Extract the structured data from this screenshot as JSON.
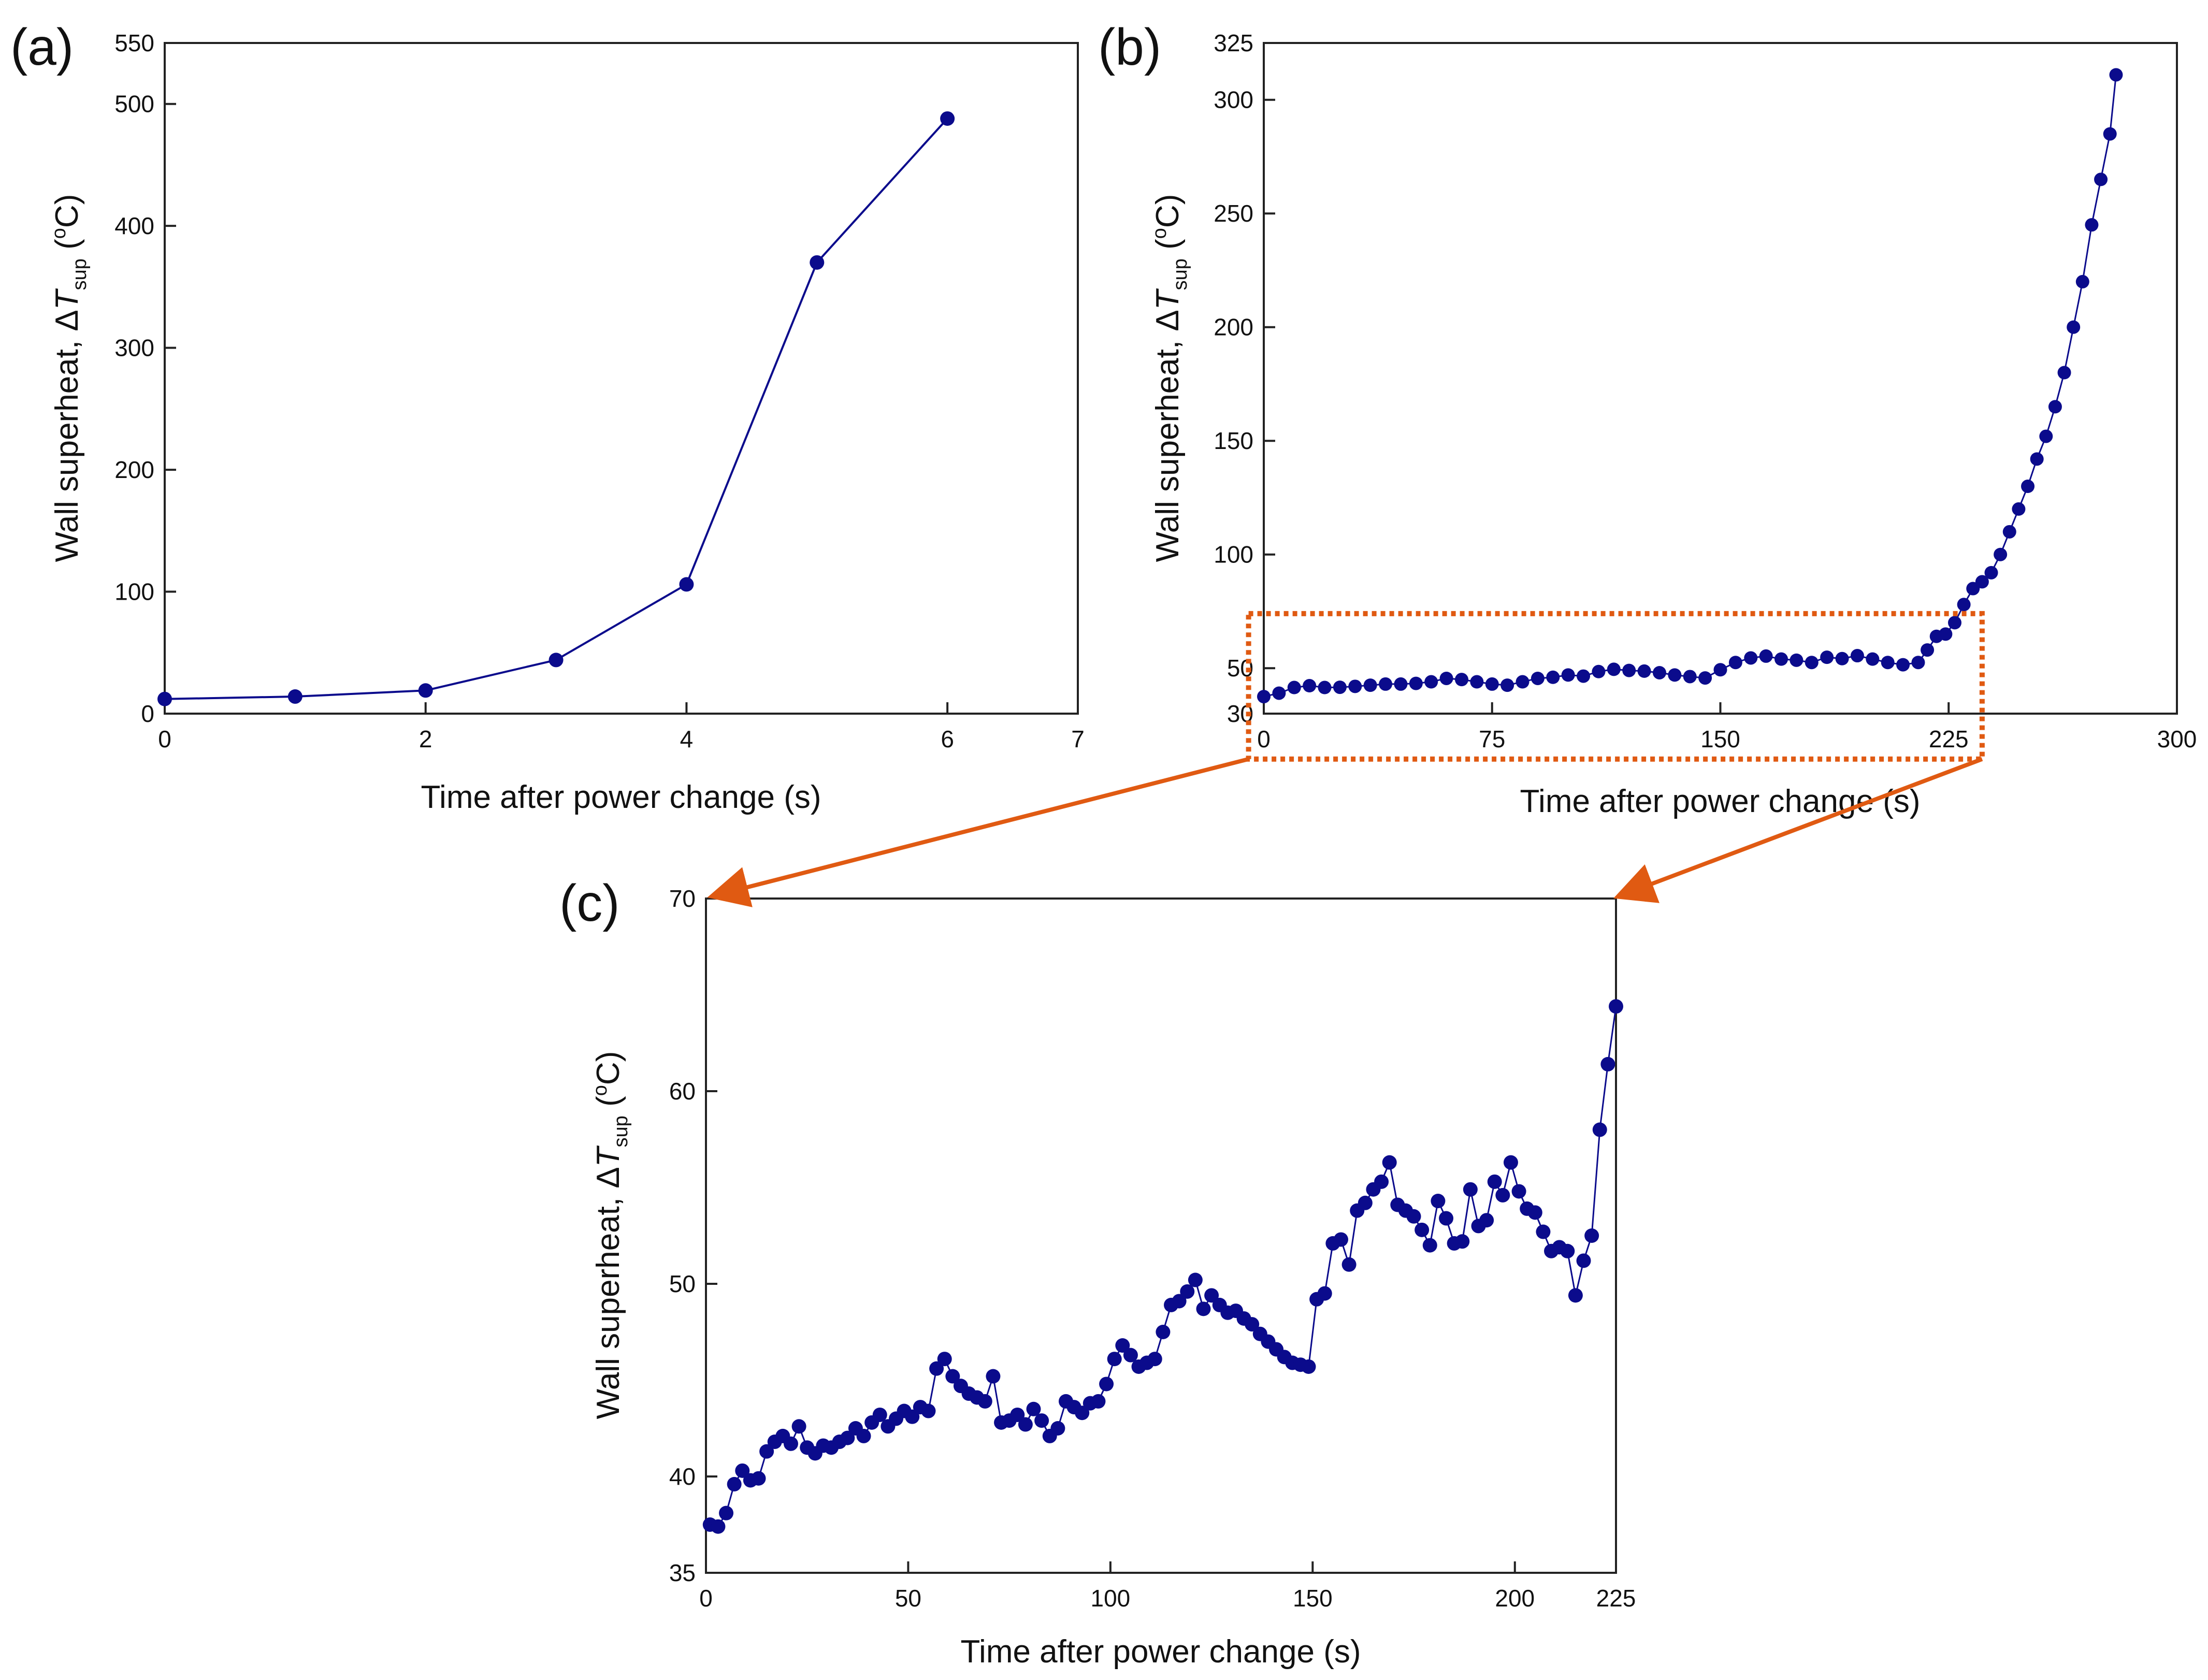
{
  "colors": {
    "series": "#0b0b8c",
    "axis": "#222222",
    "zoom": "#e05a12"
  },
  "chart_data": [
    {
      "id": "a",
      "type": "line",
      "panel_label": "(a)",
      "xlabel": "Time after power change (s)",
      "ylabel_main": "Wall superheat, ",
      "ylabel_delta": "Δ",
      "ylabel_var": "T",
      "ylabel_sub": "sup",
      "ylabel_unit": " (",
      "ylabel_deg": "o",
      "ylabel_end": "C)",
      "xlim": [
        0,
        7
      ],
      "ylim": [
        0,
        550
      ],
      "xticks": [
        "0",
        "2",
        "4",
        "6",
        "7"
      ],
      "yticks": [
        "0",
        "100",
        "200",
        "300",
        "400",
        "500",
        "550"
      ],
      "grid": false,
      "series": [
        {
          "name": "Wall superheat",
          "x": [
            0,
            1,
            2,
            3,
            4,
            5,
            6
          ],
          "y": [
            12,
            14,
            19,
            44,
            106,
            370,
            488
          ]
        }
      ]
    },
    {
      "id": "b",
      "type": "line",
      "panel_label": "(b)",
      "xlabel": "Time after power change (s)",
      "ylabel_main": "Wall superheat, ",
      "ylabel_delta": "Δ",
      "ylabel_var": "T",
      "ylabel_sub": "sup",
      "ylabel_unit": " (",
      "ylabel_deg": "o",
      "ylabel_end": "C)",
      "xlim": [
        0,
        300
      ],
      "ylim": [
        30,
        325
      ],
      "xticks": [
        "0",
        "75",
        "150",
        "225",
        "300"
      ],
      "yticks": [
        "30",
        "50",
        "100",
        "150",
        "200",
        "250",
        "300",
        "325"
      ],
      "grid": false,
      "zoom_box": {
        "x": [
          -5,
          236
        ],
        "y": [
          10,
          74
        ]
      },
      "series": [
        {
          "name": "Wall superheat",
          "x": [
            0,
            5,
            10,
            15,
            20,
            25,
            30,
            35,
            40,
            45,
            50,
            55,
            60,
            65,
            70,
            75,
            80,
            85,
            90,
            95,
            100,
            105,
            110,
            115,
            120,
            125,
            130,
            135,
            140,
            145,
            150,
            155,
            160,
            165,
            170,
            175,
            180,
            185,
            190,
            195,
            200,
            205,
            210,
            215,
            218,
            221,
            224,
            227,
            230,
            233,
            236,
            239,
            242,
            245,
            248,
            251,
            254,
            257,
            260,
            263,
            266,
            269,
            272,
            275,
            278,
            280
          ],
          "y": [
            37.5,
            39,
            41.5,
            42.3,
            41.5,
            41.6,
            42,
            42.5,
            43,
            43,
            43.3,
            44,
            45.5,
            45,
            44,
            43,
            42.5,
            44,
            45.5,
            46,
            47,
            46.5,
            48.5,
            49.5,
            49,
            48.7,
            48,
            47,
            46.3,
            45.7,
            49.3,
            52.5,
            54.5,
            55.3,
            54,
            53.5,
            52.5,
            54.8,
            54.2,
            55.5,
            54,
            52.5,
            51.5,
            52.5,
            58,
            64,
            65,
            70,
            78,
            85,
            88,
            92,
            100,
            110,
            120,
            130,
            142,
            152,
            165,
            180,
            200,
            220,
            245,
            265,
            285,
            311
          ]
        }
      ]
    },
    {
      "id": "c",
      "type": "line",
      "panel_label": "(c)",
      "xlabel": "Time after power change (s)",
      "ylabel_main": "Wall superheat, ",
      "ylabel_delta": "Δ",
      "ylabel_var": "T",
      "ylabel_sub": "sup",
      "ylabel_unit": " (",
      "ylabel_deg": "o",
      "ylabel_end": "C)",
      "xlim": [
        0,
        225
      ],
      "ylim": [
        35,
        70
      ],
      "xticks": [
        "0",
        "50",
        "100",
        "150",
        "200",
        "225"
      ],
      "yticks": [
        "35",
        "40",
        "50",
        "60",
        "70"
      ],
      "grid": false,
      "series": [
        {
          "name": "Wall superheat",
          "x": [
            1,
            3,
            5,
            7,
            9,
            11,
            13,
            15,
            17,
            19,
            21,
            23,
            25,
            27,
            29,
            31,
            33,
            35,
            37,
            39,
            41,
            43,
            45,
            47,
            49,
            51,
            53,
            55,
            57,
            59,
            61,
            63,
            65,
            67,
            69,
            71,
            73,
            75,
            77,
            79,
            81,
            83,
            85,
            87,
            89,
            91,
            93,
            95,
            97,
            99,
            101,
            103,
            105,
            107,
            109,
            111,
            113,
            115,
            117,
            119,
            121,
            123,
            125,
            127,
            129,
            131,
            133,
            135,
            137,
            139,
            141,
            143,
            145,
            147,
            149,
            151,
            153,
            155,
            157,
            159,
            161,
            163,
            165,
            167,
            169,
            171,
            173,
            175,
            177,
            179,
            181,
            183,
            185,
            187,
            189,
            191,
            193,
            195,
            197,
            199,
            201,
            203,
            205,
            207,
            209,
            211,
            213,
            215,
            217,
            219,
            221,
            223,
            225
          ],
          "y": [
            37.5,
            37.4,
            38.1,
            39.6,
            40.3,
            39.8,
            39.9,
            41.3,
            41.8,
            42.1,
            41.7,
            42.6,
            41.5,
            41.2,
            41.6,
            41.5,
            41.8,
            42.0,
            42.5,
            42.1,
            42.8,
            43.2,
            42.6,
            43.0,
            43.4,
            43.1,
            43.6,
            43.4,
            45.6,
            46.1,
            45.2,
            44.7,
            44.3,
            44.1,
            43.9,
            45.2,
            42.8,
            42.9,
            43.2,
            42.7,
            43.5,
            42.9,
            42.1,
            42.5,
            43.9,
            43.6,
            43.3,
            43.8,
            43.9,
            44.8,
            46.1,
            46.8,
            46.3,
            45.7,
            45.9,
            46.1,
            47.5,
            48.9,
            49.1,
            49.6,
            50.2,
            48.7,
            49.4,
            48.9,
            48.5,
            48.6,
            48.2,
            47.9,
            47.4,
            47.0,
            46.6,
            46.2,
            45.9,
            45.8,
            45.7,
            49.2,
            49.5,
            52.1,
            52.3,
            51.0,
            53.8,
            54.2,
            54.9,
            55.3,
            56.3,
            54.1,
            53.8,
            53.5,
            52.8,
            52.0,
            54.3,
            53.4,
            52.1,
            52.2,
            54.9,
            53.0,
            53.3,
            55.3,
            54.6,
            56.3,
            54.8,
            53.9,
            53.7,
            52.7,
            51.7,
            51.9,
            51.7,
            49.4,
            51.2,
            52.5,
            58.0,
            61.4,
            64.4
          ]
        }
      ]
    }
  ]
}
